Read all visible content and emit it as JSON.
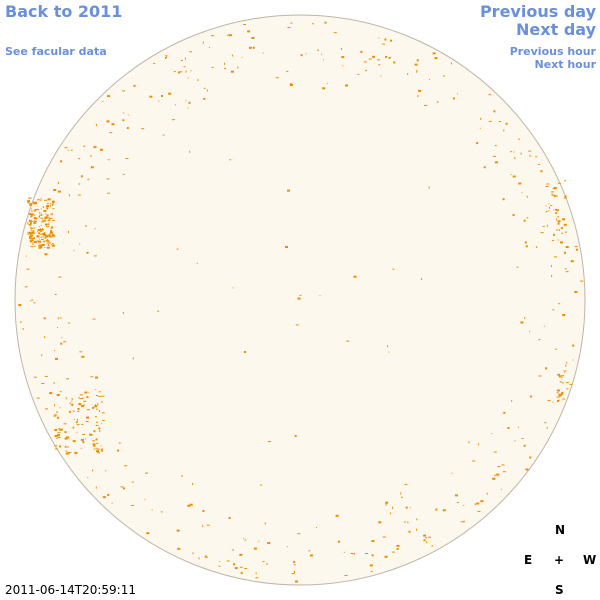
{
  "nav": {
    "back": "Back to 2011",
    "facular": "See facular data",
    "previous_day": "Previous day",
    "next_day": "Next day",
    "previous_hour": "Previous hour",
    "next_hour": "Next hour"
  },
  "timestamp": "2011-06-14T20:59:11",
  "compass": {
    "north": "N",
    "east": "E",
    "center": "+",
    "west": "W",
    "south": "S"
  }
}
